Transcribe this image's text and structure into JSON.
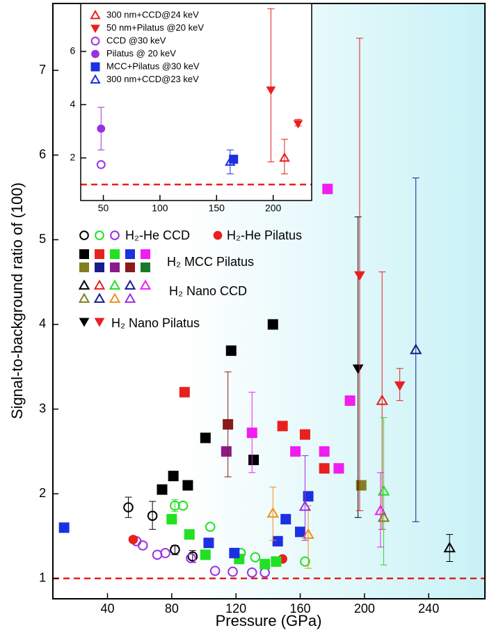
{
  "chart_data": [
    {
      "type": "scatter",
      "x_label": "Pressure (GPa)",
      "y_label": "Signal-to-background ratio of (100)",
      "xlim": [
        6,
        275
      ],
      "ylim": [
        0.76,
        7.79
      ],
      "xticks": [
        40,
        80,
        120,
        160,
        200,
        240
      ],
      "yticks": [
        1,
        2,
        3,
        4,
        5,
        6,
        7
      ],
      "reference_line": {
        "value": 1,
        "color": "#e8201e"
      },
      "groups": [
        {
          "name": "H₂-He CCD",
          "marker": "circle-open",
          "series": [
            {
              "color": "#000000",
              "x": [
                53,
                68,
                82,
                93
              ],
              "values": [
                1.84,
                1.74,
                1.34,
                1.26
              ],
              "errors": [
                [
                  1.72,
                  1.96
                ],
                [
                  1.58,
                  1.91
                ],
                [
                  1.28,
                  1.39
                ],
                [
                  1.19,
                  1.33
                ]
              ]
            },
            {
              "color": "#22e022",
              "x": [
                82,
                87,
                104,
                123,
                132,
                163
              ],
              "values": [
                1.86,
                1.86,
                1.61,
                1.3,
                1.25,
                1.2
              ],
              "errors": [
                [
                  1.79,
                  1.93
                ],
                null,
                null,
                null,
                null,
                null
              ]
            },
            {
              "color": "#9b30e0",
              "x": [
                58,
                62,
                71,
                76,
                92,
                107,
                118,
                130,
                138
              ],
              "values": [
                1.44,
                1.39,
                1.28,
                1.3,
                1.24,
                1.09,
                1.08,
                1.07,
                1.07
              ],
              "errors": [
                null,
                null,
                null,
                null,
                null,
                null,
                null,
                null,
                null
              ]
            }
          ]
        },
        {
          "name": "H₂-He Pilatus",
          "marker": "circle",
          "series": [
            {
              "color": "#e8201e",
              "x": [
                56,
                149
              ],
              "values": [
                1.46,
                1.23
              ],
              "errors": [
                null,
                null
              ]
            }
          ]
        },
        {
          "name": "H₂ MCC Pilatus",
          "marker": "square",
          "series": [
            {
              "color": "#000000",
              "x": [
                74,
                81,
                90,
                101,
                117,
                143,
                131
              ],
              "values": [
                2.05,
                2.21,
                2.1,
                2.66,
                3.69,
                4.0,
                2.4
              ],
              "errors": [
                null,
                null,
                null,
                null,
                null,
                null,
                null
              ]
            },
            {
              "color": "#e8201e",
              "x": [
                88,
                149,
                163,
                175
              ],
              "values": [
                3.2,
                2.8,
                2.7,
                2.3
              ],
              "errors": [
                null,
                null,
                null,
                null
              ]
            },
            {
              "color": "#22e022",
              "x": [
                80,
                91,
                101,
                122,
                138,
                145
              ],
              "values": [
                1.7,
                1.52,
                1.28,
                1.23,
                1.17,
                1.2
              ],
              "errors": [
                null,
                null,
                null,
                null,
                null,
                null
              ]
            },
            {
              "color": "#1b30e0",
              "x": [
                13,
                103,
                119,
                146,
                151,
                160,
                165
              ],
              "values": [
                1.6,
                1.42,
                1.3,
                1.44,
                1.7,
                1.55,
                1.97
              ],
              "errors": [
                null,
                null,
                null,
                null,
                null,
                null,
                null
              ]
            },
            {
              "color": "#f01ef0",
              "x": [
                177,
                130,
                157,
                175,
                184,
                191
              ],
              "values": [
                5.6,
                2.72,
                2.5,
                2.5,
                2.3,
                3.1
              ],
              "errors": [
                null,
                [
                  2.25,
                  3.2
                ],
                null,
                null,
                null,
                null
              ]
            },
            {
              "color": "#808020",
              "x": [
                198
              ],
              "values": [
                2.1
              ],
              "errors": [
                null
              ]
            },
            {
              "color": "#1a1a8c",
              "x": [],
              "values": [],
              "errors": []
            },
            {
              "color": "#8b1a8b",
              "x": [
                114
              ],
              "values": [
                2.5
              ],
              "errors": [
                null
              ]
            },
            {
              "color": "#8b1a1a",
              "x": [
                115
              ],
              "values": [
                2.82
              ],
              "errors": [
                [
                  2.2,
                  3.44
                ]
              ]
            },
            {
              "color": "#1a7a2a",
              "x": [],
              "values": [],
              "errors": []
            }
          ]
        },
        {
          "name": "H₂ Nano CCD",
          "marker": "triangle-open",
          "series": [
            {
              "color": "#000000",
              "x": [
                253
              ],
              "values": [
                1.36
              ],
              "errors": [
                [
                  1.2,
                  1.52
                ]
              ]
            },
            {
              "color": "#e8201e",
              "x": [
                211
              ],
              "values": [
                3.1
              ],
              "errors": [
                [
                  1.58,
                  4.62
                ]
              ]
            },
            {
              "color": "#22e022",
              "x": [
                212
              ],
              "values": [
                2.03
              ],
              "errors": [
                [
                  1.16,
                  2.9
                ]
              ]
            },
            {
              "color": "#1a1a8c",
              "x": [
                232
              ],
              "values": [
                3.7
              ],
              "errors": [
                [
                  1.67,
                  5.73
                ]
              ]
            },
            {
              "color": "#f01ef0",
              "x": [
                210
              ],
              "values": [
                1.8
              ],
              "errors": [
                [
                  1.37,
                  2.25
                ]
              ]
            },
            {
              "color": "#808020",
              "x": [
                212
              ],
              "values": [
                1.72
              ],
              "errors": [
                null
              ]
            },
            {
              "color": "#1a1a8c",
              "x": [],
              "values": [],
              "errors": []
            },
            {
              "color": "#f0901e",
              "x": [
                143,
                165
              ],
              "values": [
                1.77,
                1.52
              ],
              "errors": [
                [
                  1.45,
                  2.08
                ],
                [
                  1.12,
                  1.86
                ]
              ]
            },
            {
              "color": "#9b30e0",
              "x": [
                163
              ],
              "values": [
                1.85
              ],
              "errors": [
                [
                  1.45,
                  2.45
                ]
              ]
            }
          ]
        },
        {
          "name": "H₂ Nano Pilatus",
          "marker": "triangle-down",
          "series": [
            {
              "color": "#000000",
              "x": [
                196
              ],
              "values": [
                3.48
              ],
              "errors": [
                [
                  1.72,
                  5.27
                ]
              ]
            },
            {
              "color": "#e8201e",
              "x": [
                197,
                222
              ],
              "values": [
                4.58,
                3.28
              ],
              "errors": [
                [
                  1.8,
                  7.38
                ],
                [
                  3.1,
                  3.48
                ]
              ]
            }
          ]
        }
      ]
    },
    {
      "type": "scatter",
      "xlim": [
        30,
        234
      ],
      "ylim": [
        0.4,
        7.8
      ],
      "xticks": [
        50,
        100,
        150,
        200
      ],
      "yticks": [
        2,
        4,
        6
      ],
      "reference_line": {
        "value": 1,
        "color": "#e8201e"
      },
      "series": [
        {
          "name": "300 nm+CCD@24 keV",
          "color": "#e8201e",
          "marker": "triangle-open",
          "x": [
            210
          ],
          "values": [
            2.0
          ],
          "errors": [
            [
              1.4,
              2.7
            ]
          ]
        },
        {
          "name": "50 nm+Pilatus @20 keV",
          "color": "#e8201e",
          "marker": "triangle-down",
          "x": [
            198,
            222
          ],
          "values": [
            4.55,
            3.29
          ],
          "errors": [
            [
              1.85,
              7.6
            ],
            [
              3.2,
              3.45
            ]
          ]
        },
        {
          "name": "CCD @30 keV",
          "color": "#9b30e0",
          "marker": "circle-open",
          "x": [
            48
          ],
          "values": [
            1.75
          ],
          "errors": [
            null
          ]
        },
        {
          "name": "Pilatus @ 20 keV",
          "color": "#9b30e0",
          "marker": "circle",
          "x": [
            48
          ],
          "values": [
            3.1
          ],
          "errors": [
            [
              2.3,
              3.9
            ]
          ]
        },
        {
          "name": "MCC+Pilatus @30 keV",
          "color": "#1b30e0",
          "marker": "square",
          "x": [
            165
          ],
          "values": [
            1.95
          ],
          "errors": [
            null
          ]
        },
        {
          "name": "300 nm+CCD@23 keV",
          "color": "#1b30e0",
          "marker": "triangle-open",
          "x": [
            162
          ],
          "values": [
            1.85
          ],
          "errors": [
            [
              1.4,
              2.3
            ]
          ]
        }
      ]
    }
  ]
}
